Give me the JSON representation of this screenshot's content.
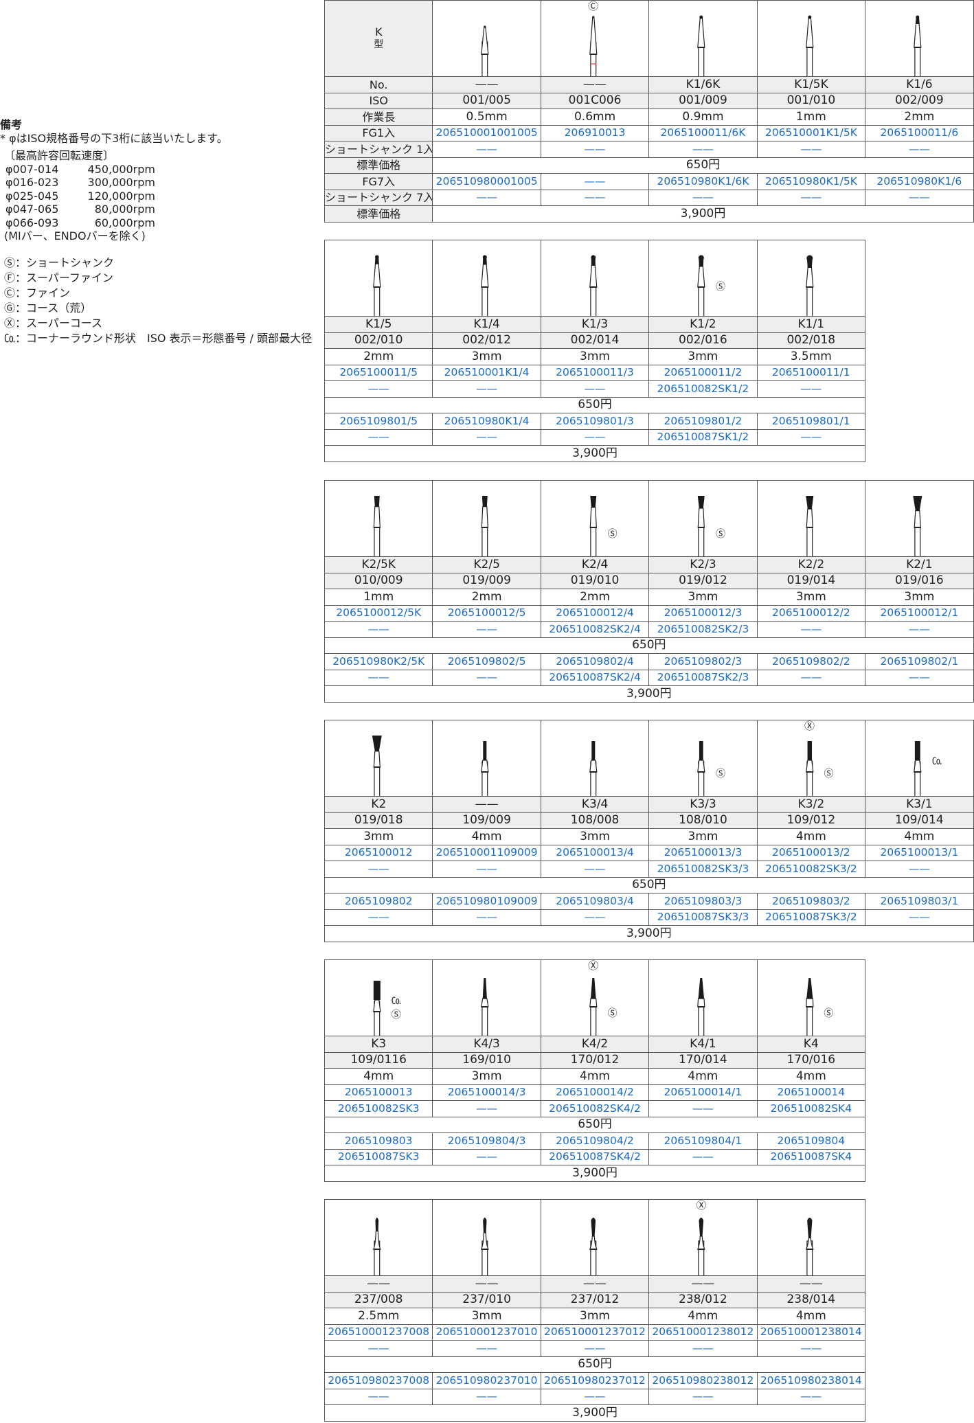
{
  "notes": {
    "title": "備考",
    "line1": "* φはISO規格番号の下3桁に該当いたします。",
    "speed_title": "〔最高許容回転速度〕",
    "speeds": [
      {
        "range": "φ007-014",
        "rpm": "450,000rpm"
      },
      {
        "range": "φ016-023",
        "rpm": "300,000rpm"
      },
      {
        "range": "φ025-045",
        "rpm": "120,000rpm"
      },
      {
        "range": "φ047-065",
        "rpm": "80,000rpm"
      },
      {
        "range": "φ066-093",
        "rpm": "60,000rpm"
      }
    ],
    "exclusion": "(MIバー、ENDOバーを除く)",
    "legend": [
      "Ⓢ：ショートシャンク",
      "Ⓕ：スーパーファイン",
      "Ⓒ：ファイン",
      "Ⓖ：コース（荒）",
      "Ⓧ：スーパーコース",
      "㏇：コーナーラウンド形状　ISO 表示＝形態番号 / 頭部最大径"
    ]
  },
  "header": {
    "type_letter": "K",
    "type_label": "型",
    "rows": [
      "No.",
      "ISO",
      "作業長",
      "FG1入",
      "ショートシャンク 1入",
      "標準価格",
      "FG7入",
      "ショートシャンク 7入",
      "標準価格"
    ]
  },
  "colors": {
    "code": "#1a6bc4",
    "gray_row": "#eeeeee",
    "line": "#555555",
    "fine_band": "#e34040"
  },
  "tables": [
    {
      "price1": "650円",
      "price7": "3,900円",
      "columns": [
        {
          "no": "——",
          "iso": "001/005",
          "length": "0.5mm",
          "fg1": "206510001001005",
          "ss1": "——",
          "fg7": "206510980001005",
          "ss7": "——",
          "shape": "needle",
          "size": 3,
          "top_mark": "",
          "side_marks": []
        },
        {
          "no": "——",
          "iso": "001C006",
          "length": "0.6mm",
          "fg1": "206910013",
          "ss1": "——",
          "fg7": "——",
          "ss7": "——",
          "shape": "needle-fine",
          "size": 3.5,
          "top_mark": "Ⓒ",
          "side_marks": []
        },
        {
          "no": "K1/6K",
          "iso": "001/009",
          "length": "0.9mm",
          "fg1": "2065100011/6K",
          "ss1": "——",
          "fg7": "206510980K1/6K",
          "ss7": "——",
          "shape": "ball",
          "size": 4,
          "top_mark": "",
          "side_marks": []
        },
        {
          "no": "K1/5K",
          "iso": "001/010",
          "length": "1mm",
          "fg1": "206510001K1/5K",
          "ss1": "——",
          "fg7": "206510980K1/5K",
          "ss7": "——",
          "shape": "ball",
          "size": 4,
          "top_mark": "",
          "side_marks": []
        },
        {
          "no": "K1/6",
          "iso": "002/009",
          "length": "2mm",
          "fg1": "2065100011/6",
          "ss1": "——",
          "fg7": "206510980K1/6",
          "ss7": "——",
          "shape": "ballneck",
          "size": 4,
          "top_mark": "",
          "side_marks": []
        }
      ]
    },
    {
      "price1": "650円",
      "price7": "3,900円",
      "columns": [
        {
          "no": "K1/5",
          "iso": "002/010",
          "length": "2mm",
          "fg1": "2065100011/5",
          "ss1": "——",
          "fg7": "2065109801/5",
          "ss7": "——",
          "shape": "ballneck",
          "size": 4.5,
          "top_mark": "",
          "side_marks": []
        },
        {
          "no": "K1/4",
          "iso": "002/012",
          "length": "3mm",
          "fg1": "206510001K1/4",
          "ss1": "——",
          "fg7": "206510980K1/4",
          "ss7": "——",
          "shape": "ballneck",
          "size": 5,
          "top_mark": "",
          "side_marks": []
        },
        {
          "no": "K1/3",
          "iso": "002/014",
          "length": "3mm",
          "fg1": "2065100011/3",
          "ss1": "——",
          "fg7": "2065109801/3",
          "ss7": "——",
          "shape": "ballneck",
          "size": 6,
          "top_mark": "",
          "side_marks": []
        },
        {
          "no": "K1/2",
          "iso": "002/016",
          "length": "3mm",
          "fg1": "2065100011/2",
          "ss1": "206510082SK1/2",
          "fg7": "2065109801/2",
          "ss7": "206510087SK1/2",
          "shape": "ballneck",
          "size": 7,
          "top_mark": "",
          "side_marks": [
            "Ⓢ"
          ]
        },
        {
          "no": "K1/1",
          "iso": "002/018",
          "length": "3.5mm",
          "fg1": "2065100011/1",
          "ss1": "——",
          "fg7": "2065109801/1",
          "ss7": "——",
          "shape": "ballneck",
          "size": 8,
          "top_mark": "",
          "side_marks": []
        }
      ]
    },
    {
      "price1": "650円",
      "price7": "3,900円",
      "columns": [
        {
          "no": "K2/5K",
          "iso": "010/009",
          "length": "1mm",
          "fg1": "2065100012/5K",
          "ss1": "——",
          "fg7": "206510980K2/5K",
          "ss7": "——",
          "shape": "invcone",
          "size": 4,
          "top_mark": "",
          "side_marks": []
        },
        {
          "no": "K2/5",
          "iso": "019/009",
          "length": "2mm",
          "fg1": "2065100012/5",
          "ss1": "——",
          "fg7": "2065109802/5",
          "ss7": "——",
          "shape": "invcone",
          "size": 4,
          "top_mark": "",
          "side_marks": []
        },
        {
          "no": "K2/4",
          "iso": "019/010",
          "length": "2mm",
          "fg1": "2065100012/4",
          "ss1": "206510082SK2/4",
          "fg7": "2065109802/4",
          "ss7": "206510087SK2/4",
          "shape": "invcone",
          "size": 4.5,
          "top_mark": "",
          "side_marks": [
            "Ⓢ"
          ]
        },
        {
          "no": "K2/3",
          "iso": "019/012",
          "length": "3mm",
          "fg1": "2065100012/3",
          "ss1": "206510082SK2/3",
          "fg7": "2065109802/3",
          "ss7": "206510087SK2/3",
          "shape": "invcone",
          "size": 5,
          "top_mark": "",
          "side_marks": [
            "Ⓢ"
          ]
        },
        {
          "no": "K2/2",
          "iso": "019/014",
          "length": "3mm",
          "fg1": "2065100012/2",
          "ss1": "——",
          "fg7": "2065109802/2",
          "ss7": "——",
          "shape": "invcone",
          "size": 5.5,
          "top_mark": "",
          "side_marks": []
        },
        {
          "no": "K2/1",
          "iso": "019/016",
          "length": "3mm",
          "fg1": "2065100012/1",
          "ss1": "——",
          "fg7": "2065109802/1",
          "ss7": "——",
          "shape": "invcone",
          "size": 6.5,
          "top_mark": "",
          "side_marks": []
        }
      ]
    },
    {
      "price1": "650円",
      "price7": "3,900円",
      "columns": [
        {
          "no": "K2",
          "iso": "019/018",
          "length": "3mm",
          "fg1": "2065100012",
          "ss1": "——",
          "fg7": "2065109802",
          "ss7": "——",
          "shape": "invcone",
          "size": 7,
          "top_mark": "",
          "side_marks": []
        },
        {
          "no": "——",
          "iso": "109/009",
          "length": "4mm",
          "fg1": "206510001109009",
          "ss1": "——",
          "fg7": "206510980109009",
          "ss7": "——",
          "shape": "cyl",
          "size": 3.5,
          "top_mark": "",
          "side_marks": []
        },
        {
          "no": "K3/4",
          "iso": "108/008",
          "length": "3mm",
          "fg1": "2065100013/4",
          "ss1": "——",
          "fg7": "2065109803/4",
          "ss7": "——",
          "shape": "cyl",
          "size": 3.5,
          "top_mark": "",
          "side_marks": []
        },
        {
          "no": "K3/3",
          "iso": "108/010",
          "length": "3mm",
          "fg1": "2065100013/3",
          "ss1": "206510082SK3/3",
          "fg7": "2065109803/3",
          "ss7": "206510087SK3/3",
          "shape": "cyl",
          "size": 4,
          "top_mark": "",
          "side_marks": [
            "Ⓢ"
          ]
        },
        {
          "no": "K3/2",
          "iso": "109/012",
          "length": "4mm",
          "fg1": "2065100013/2",
          "ss1": "206510082SK3/2",
          "fg7": "2065109803/2",
          "ss7": "206510087SK3/2",
          "shape": "cyl",
          "size": 4.5,
          "top_mark": "Ⓧ",
          "side_marks": [
            "Ⓢ"
          ]
        },
        {
          "no": "K3/1",
          "iso": "109/014",
          "length": "4mm",
          "fg1": "2065100013/1",
          "ss1": "——",
          "fg7": "2065109803/1",
          "ss7": "——",
          "shape": "cyl",
          "size": 5.5,
          "top_mark": "",
          "side_marks": [
            "㏇"
          ]
        }
      ]
    },
    {
      "price1": "650円",
      "price7": "3,900円",
      "columns": [
        {
          "no": "K3",
          "iso": "109/0116",
          "length": "4mm",
          "fg1": "2065100013",
          "ss1": "206510082SK3",
          "fg7": "2065109803",
          "ss7": "206510087SK3",
          "shape": "cyl",
          "size": 7,
          "top_mark": "",
          "side_marks": [
            "㏇",
            "Ⓢ"
          ]
        },
        {
          "no": "K4/3",
          "iso": "169/010",
          "length": "3mm",
          "fg1": "2065100014/3",
          "ss1": "——",
          "fg7": "2065109804/3",
          "ss7": "——",
          "shape": "taper",
          "size": 4,
          "top_mark": "",
          "side_marks": []
        },
        {
          "no": "K4/2",
          "iso": "170/012",
          "length": "4mm",
          "fg1": "2065100014/2",
          "ss1": "206510082SK4/2",
          "fg7": "2065109804/2",
          "ss7": "206510087SK4/2",
          "shape": "taper",
          "size": 5,
          "top_mark": "Ⓧ",
          "side_marks": [
            "Ⓢ"
          ]
        },
        {
          "no": "K4/1",
          "iso": "170/014",
          "length": "4mm",
          "fg1": "2065100014/1",
          "ss1": "——",
          "fg7": "2065109804/1",
          "ss7": "——",
          "shape": "taper",
          "size": 5.5,
          "top_mark": "",
          "side_marks": []
        },
        {
          "no": "K4",
          "iso": "170/016",
          "length": "4mm",
          "fg1": "2065100014",
          "ss1": "206510082SK4",
          "fg7": "2065109804",
          "ss7": "206510087SK4",
          "shape": "taper",
          "size": 6,
          "top_mark": "",
          "side_marks": [
            "Ⓢ"
          ]
        }
      ]
    },
    {
      "price1": "650円",
      "price7": "3,900円",
      "columns": [
        {
          "no": "——",
          "iso": "237/008",
          "length": "2.5mm",
          "fg1": "206510001237008",
          "ss1": "——",
          "fg7": "206510980237008",
          "ss7": "——",
          "shape": "pear",
          "size": 3.5,
          "top_mark": "",
          "side_marks": []
        },
        {
          "no": "——",
          "iso": "237/010",
          "length": "3mm",
          "fg1": "206510001237010",
          "ss1": "——",
          "fg7": "206510980237010",
          "ss7": "——",
          "shape": "pear",
          "size": 4,
          "top_mark": "",
          "side_marks": []
        },
        {
          "no": "——",
          "iso": "237/012",
          "length": "3mm",
          "fg1": "206510001237012",
          "ss1": "——",
          "fg7": "206510980237012",
          "ss7": "——",
          "shape": "pear",
          "size": 5,
          "top_mark": "",
          "side_marks": []
        },
        {
          "no": "——",
          "iso": "238/012",
          "length": "4mm",
          "fg1": "206510001238012",
          "ss1": "——",
          "fg7": "206510980238012",
          "ss7": "——",
          "shape": "pear",
          "size": 5,
          "top_mark": "Ⓧ",
          "side_marks": []
        },
        {
          "no": "——",
          "iso": "238/014",
          "length": "4mm",
          "fg1": "206510001238014",
          "ss1": "——",
          "fg7": "206510980238014",
          "ss7": "——",
          "shape": "pear",
          "size": 5.5,
          "top_mark": "",
          "side_marks": []
        }
      ]
    }
  ]
}
